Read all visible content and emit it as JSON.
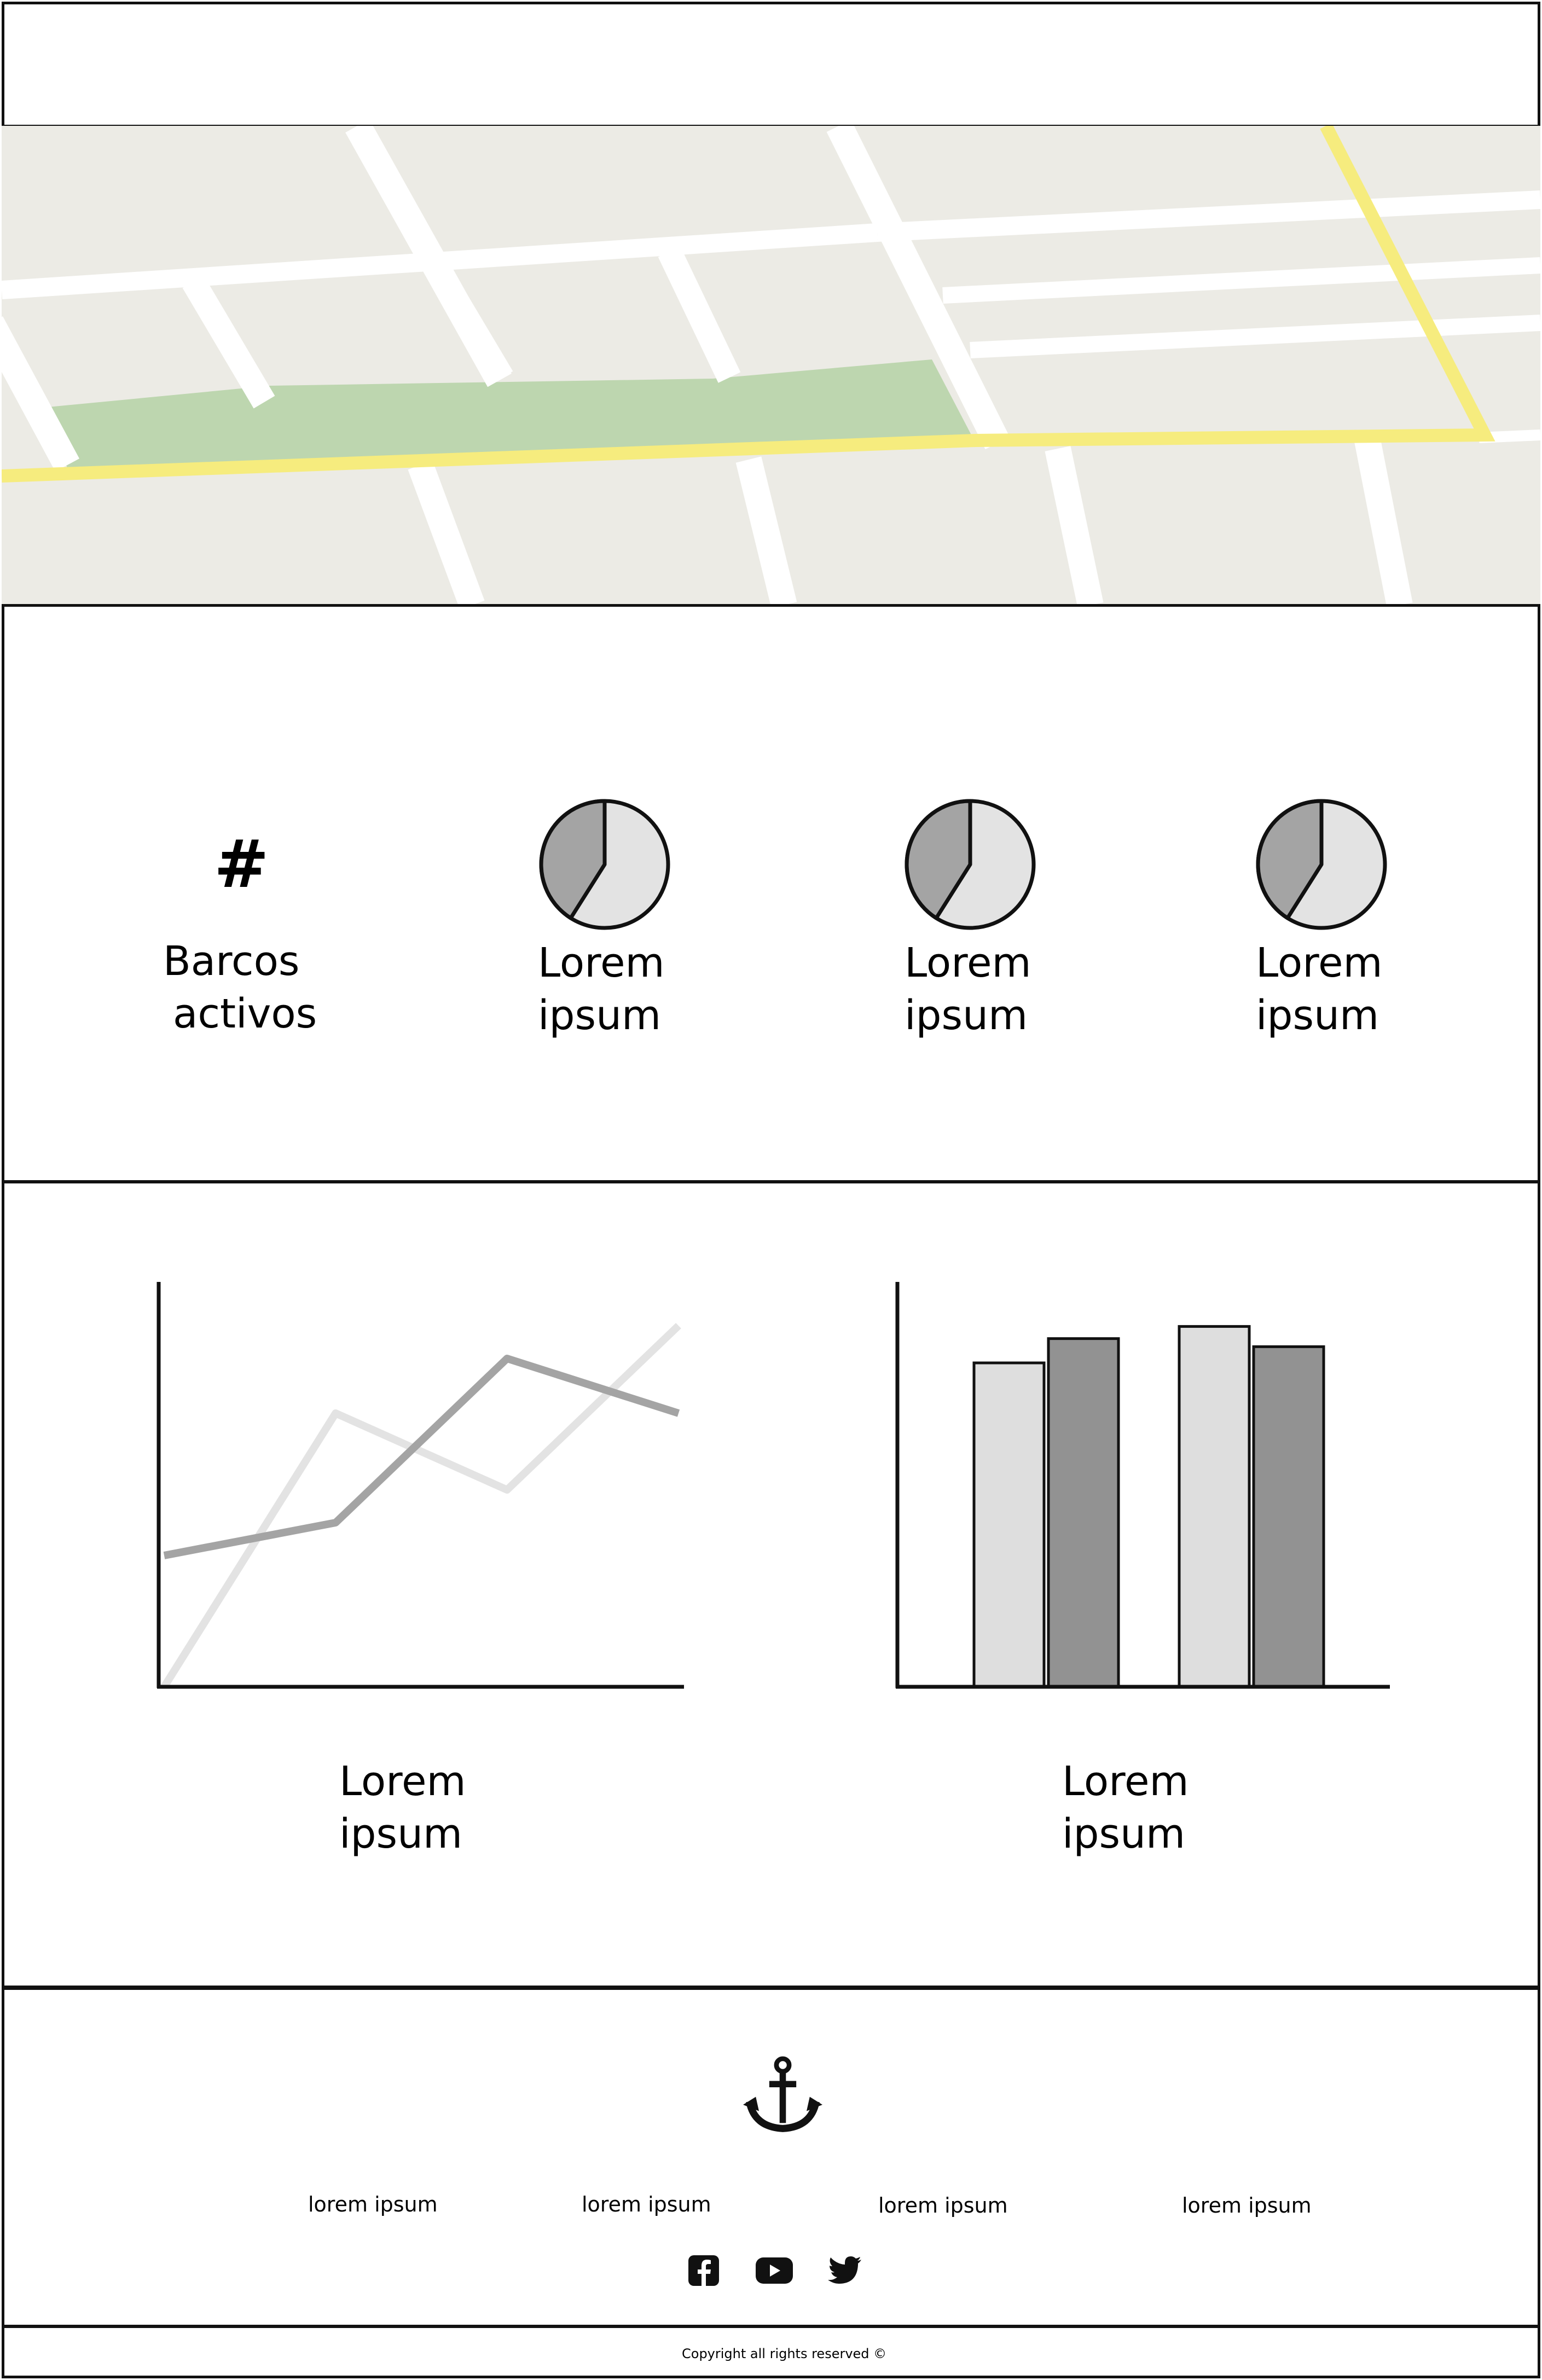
{
  "header": {},
  "map": {
    "colors": {
      "ground": "#ecebe5",
      "road": "#ffffff",
      "route": "#f6ec7e",
      "park": "#bdd6af"
    }
  },
  "stats": {
    "active_boats": {
      "icon": "hash-icon",
      "line1": "Barcos",
      "line2": "activos"
    },
    "items": [
      {
        "line1": "Lorem",
        "line2": "ipsum",
        "icon": "pie-chart-icon"
      },
      {
        "line1": "Lorem",
        "line2": "ipsum",
        "icon": "pie-chart-icon"
      },
      {
        "line1": "Lorem",
        "line2": "ipsum",
        "icon": "pie-chart-icon"
      }
    ]
  },
  "chart_data": [
    {
      "type": "line",
      "x": [
        0,
        1,
        2,
        3
      ],
      "series": [
        {
          "values": [
            0,
            2.5,
            1.8,
            3.3
          ],
          "color": "#e3e3e3"
        },
        {
          "values": [
            1.2,
            1.5,
            3.0,
            2.5
          ],
          "color": "#a4a4a4"
        }
      ],
      "ylim": [
        0,
        3.7
      ],
      "caption_line1": "Lorem",
      "caption_line2": "ipsum"
    },
    {
      "type": "bar",
      "categories": [
        "",
        ""
      ],
      "series": [
        {
          "values": [
            0.8,
            0.89
          ],
          "color": "#dedede"
        },
        {
          "values": [
            0.86,
            0.84
          ],
          "color": "#929292"
        }
      ],
      "ylim": [
        0,
        1
      ],
      "caption_line1": "Lorem",
      "caption_line2": "ipsum"
    }
  ],
  "footer": {
    "logo_icon": "anchor-icon",
    "links": [
      "lorem ipsum",
      "lorem ipsum",
      "lorem ipsum",
      "lorem ipsum"
    ],
    "social": [
      "facebook-icon",
      "youtube-icon",
      "twitter-icon"
    ]
  },
  "copyright": "Copyright all rights reserved ©"
}
